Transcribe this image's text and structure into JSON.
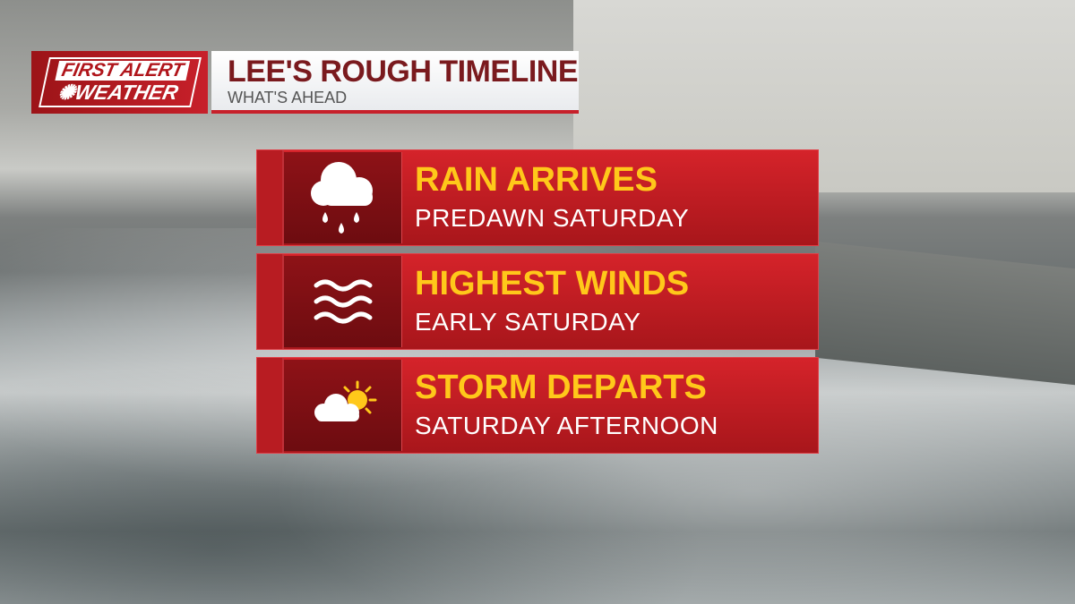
{
  "logo": {
    "line1": "FIRST ALERT",
    "line2": "WEATHER"
  },
  "header": {
    "title": "LEE'S ROUGH TIMELINE",
    "subtitle": "WHAT'S AHEAD"
  },
  "colors": {
    "card_red": "#c7202a",
    "headline_yellow": "#ffc81a",
    "title_maroon": "#7a1a1e"
  },
  "timeline": [
    {
      "icon": "rain-cloud-icon",
      "title": "RAIN ARRIVES",
      "time": "PREDAWN SATURDAY"
    },
    {
      "icon": "wind-waves-icon",
      "title": "HIGHEST WINDS",
      "time": "EARLY SATURDAY"
    },
    {
      "icon": "partly-sunny-icon",
      "title": "STORM DEPARTS",
      "time": "SATURDAY AFTERNOON"
    }
  ]
}
